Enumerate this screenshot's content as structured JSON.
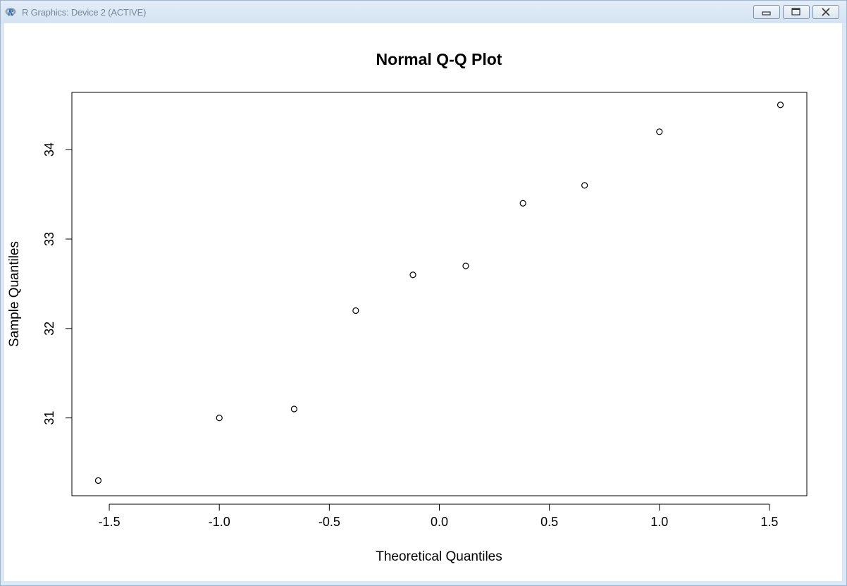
{
  "window": {
    "title": "R Graphics: Device 2 (ACTIVE)",
    "icon": "r-logo-icon",
    "controls": [
      "minimize-icon",
      "restore-icon",
      "close-icon"
    ]
  },
  "chart_data": {
    "type": "scatter",
    "title": "Normal Q-Q Plot",
    "xlabel": "Theoretical Quantiles",
    "ylabel": "Sample Quantiles",
    "xlim": [
      -1.67,
      1.67
    ],
    "ylim": [
      30.13,
      34.64
    ],
    "xticks": [
      -1.5,
      -1.0,
      -0.5,
      0.0,
      0.5,
      1.0,
      1.5
    ],
    "xtick_labels": [
      "-1.5",
      "-1.0",
      "-0.5",
      "0.0",
      "0.5",
      "1.0",
      "1.5"
    ],
    "yticks": [
      31,
      32,
      33,
      34
    ],
    "ytick_labels": [
      "31",
      "32",
      "33",
      "34"
    ],
    "grid": false,
    "marker": "open-circle",
    "points": [
      {
        "x": -1.55,
        "y": 30.3
      },
      {
        "x": -1.0,
        "y": 31.0
      },
      {
        "x": -0.66,
        "y": 31.1
      },
      {
        "x": -0.38,
        "y": 32.2
      },
      {
        "x": -0.12,
        "y": 32.6
      },
      {
        "x": 0.12,
        "y": 32.7
      },
      {
        "x": 0.38,
        "y": 33.4
      },
      {
        "x": 0.66,
        "y": 33.6
      },
      {
        "x": 1.0,
        "y": 34.2
      },
      {
        "x": 1.55,
        "y": 34.5
      }
    ]
  }
}
